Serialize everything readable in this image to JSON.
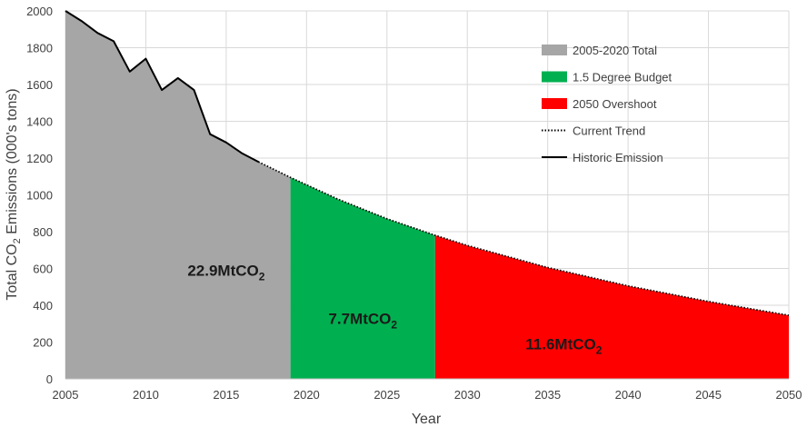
{
  "chart_data": {
    "type": "area",
    "xlabel": "Year",
    "ylabel": {
      "prefix": "Total CO",
      "subscript": "2",
      "suffix": " Emissions (000's tons)"
    },
    "xlim": [
      2005,
      2050
    ],
    "ylim": [
      0,
      2000
    ],
    "x_ticks": [
      2005,
      2010,
      2015,
      2020,
      2025,
      2030,
      2035,
      2040,
      2045,
      2050
    ],
    "y_ticks": [
      0,
      200,
      400,
      600,
      800,
      1000,
      1200,
      1400,
      1600,
      1800,
      2000
    ],
    "grid": {
      "x": true,
      "y": true
    },
    "legend_position": "top-right",
    "legend": [
      {
        "label": "2005-2020 Total",
        "marker": "swatch",
        "color": "#a6a6a6"
      },
      {
        "label": "1.5 Degree Budget",
        "marker": "swatch",
        "color": "#00b050"
      },
      {
        "label": "2050 Overshoot",
        "marker": "swatch",
        "color": "#ff0000"
      },
      {
        "label": "Current Trend",
        "marker": "dotted-line",
        "color": "#000000"
      },
      {
        "label": "Historic Emission",
        "marker": "solid-line",
        "color": "#000000"
      }
    ],
    "series": [
      {
        "name": "Historic Emission",
        "style": "solid-line",
        "color": "#000000",
        "points": [
          [
            2005,
            2000
          ],
          [
            2006,
            1945
          ],
          [
            2007,
            1880
          ],
          [
            2008,
            1835
          ],
          [
            2009,
            1670
          ],
          [
            2010,
            1740
          ],
          [
            2011,
            1570
          ],
          [
            2012,
            1635
          ],
          [
            2013,
            1570
          ],
          [
            2014,
            1330
          ],
          [
            2015,
            1285
          ],
          [
            2016,
            1225
          ],
          [
            2017,
            1180
          ]
        ]
      },
      {
        "name": "Current Trend",
        "style": "dotted-line",
        "color": "#000000",
        "points": [
          [
            2017,
            1180
          ],
          [
            2019,
            1095
          ],
          [
            2020,
            1055
          ],
          [
            2022,
            975
          ],
          [
            2025,
            870
          ],
          [
            2028,
            780
          ],
          [
            2030,
            725
          ],
          [
            2035,
            605
          ],
          [
            2040,
            505
          ],
          [
            2045,
            420
          ],
          [
            2050,
            345
          ]
        ]
      }
    ],
    "areas": [
      {
        "name": "2005-2020 Total",
        "color": "#a6a6a6",
        "x_range": [
          2005,
          2019
        ],
        "label": {
          "main": "22.9MtCO",
          "sub": "2"
        },
        "label_at": [
          2015,
          560
        ]
      },
      {
        "name": "1.5 Degree Budget",
        "color": "#00b050",
        "x_range": [
          2019,
          2028
        ],
        "label": {
          "main": "7.7MtCO",
          "sub": "2"
        },
        "label_at": [
          2023.5,
          300
        ]
      },
      {
        "name": "2050 Overshoot",
        "color": "#ff0000",
        "x_range": [
          2028,
          2050
        ],
        "label": {
          "main": "11.6MtCO",
          "sub": "2"
        },
        "label_at": [
          2036,
          160
        ]
      }
    ]
  }
}
